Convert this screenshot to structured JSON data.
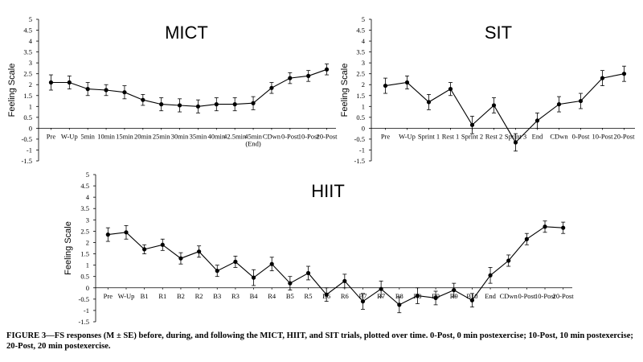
{
  "chart_data": [
    {
      "type": "line",
      "title": "MICT",
      "ylabel": "Feeling Scale",
      "ylim": [
        -1.5,
        5
      ],
      "yticks": [
        "5",
        "4.5",
        "4",
        "3.5",
        "3",
        "2.5",
        "2",
        "1.5",
        "1",
        "0.5",
        "0",
        "-0.5",
        "-1",
        "-1.5"
      ],
      "categories": [
        "Pre",
        "W-Up",
        "5min",
        "10min",
        "15min",
        "20min",
        "25min",
        "30min",
        "35min",
        "40min",
        "42.5min",
        "45min\n(End)",
        "CDwn",
        "0-Post",
        "10-Post",
        "20-Post"
      ],
      "series": [
        {
          "values": [
            2.1,
            2.1,
            1.8,
            1.75,
            1.65,
            1.3,
            1.1,
            1.05,
            1.0,
            1.1,
            1.1,
            1.15,
            1.85,
            2.3,
            2.4,
            2.7
          ],
          "se": [
            0.35,
            0.3,
            0.3,
            0.25,
            0.3,
            0.25,
            0.3,
            0.3,
            0.3,
            0.3,
            0.3,
            0.3,
            0.25,
            0.25,
            0.25,
            0.25
          ]
        }
      ]
    },
    {
      "type": "line",
      "title": "SIT",
      "ylabel": "Feeling Scale",
      "ylim": [
        -1.5,
        5
      ],
      "yticks": [
        "5",
        "4.5",
        "4",
        "3.5",
        "3",
        "2.5",
        "2",
        "1.5",
        "1",
        "0.5",
        "0",
        "-0.5",
        "-1",
        "-1.5"
      ],
      "categories": [
        "Pre",
        "W-Up",
        "Sprint 1",
        "Rest 1",
        "Sprint 2",
        "Rest 2",
        "Sprint 3",
        "End",
        "CDwn",
        "0-Post",
        "10-Post",
        "20-Post"
      ],
      "series": [
        {
          "values": [
            1.95,
            2.1,
            1.2,
            1.8,
            0.15,
            1.05,
            -0.65,
            0.35,
            1.1,
            1.25,
            2.3,
            2.5
          ],
          "se": [
            0.35,
            0.3,
            0.35,
            0.3,
            0.4,
            0.35,
            0.4,
            0.35,
            0.35,
            0.35,
            0.35,
            0.35
          ]
        }
      ]
    },
    {
      "type": "line",
      "title": "HIIT",
      "ylabel": "Feeling Scale",
      "ylim": [
        -1.5,
        5
      ],
      "yticks": [
        "5",
        "4.5",
        "4",
        "3.5",
        "3",
        "2.5",
        "2",
        "1.5",
        "1",
        "0.5",
        "0",
        "-0.5",
        "-1",
        "-1.5"
      ],
      "categories": [
        "Pre",
        "W-Up",
        "B1",
        "R1",
        "B2",
        "R2",
        "B3",
        "R3",
        "B4",
        "R4",
        "B5",
        "R5",
        "B6",
        "R6",
        "B7",
        "R7",
        "B8",
        "R8",
        "B9",
        "R9",
        "B10",
        "End",
        "CDwn",
        "0-Post",
        "10-Post",
        "20-Post"
      ],
      "series": [
        {
          "values": [
            2.35,
            2.45,
            1.7,
            1.9,
            1.3,
            1.6,
            0.75,
            1.15,
            0.45,
            1.05,
            0.2,
            0.65,
            -0.3,
            0.3,
            -0.6,
            -0.05,
            -0.75,
            -0.35,
            -0.45,
            -0.1,
            -0.55,
            0.55,
            1.2,
            2.15,
            2.7,
            2.65
          ],
          "se": [
            0.3,
            0.3,
            0.2,
            0.25,
            0.25,
            0.25,
            0.25,
            0.25,
            0.35,
            0.3,
            0.3,
            0.3,
            0.3,
            0.3,
            0.35,
            0.35,
            0.35,
            0.35,
            0.3,
            0.3,
            0.3,
            0.35,
            0.25,
            0.25,
            0.25,
            0.25
          ]
        }
      ]
    }
  ],
  "caption": "FIGURE 3—FS responses (M ± SE) before, during, and following the MICT, HIIT, and SIT trials, plotted over time. 0-Post, 0 min postexercise; 10-Post, 10 min postexercise; 20-Post, 20 min postexercise."
}
